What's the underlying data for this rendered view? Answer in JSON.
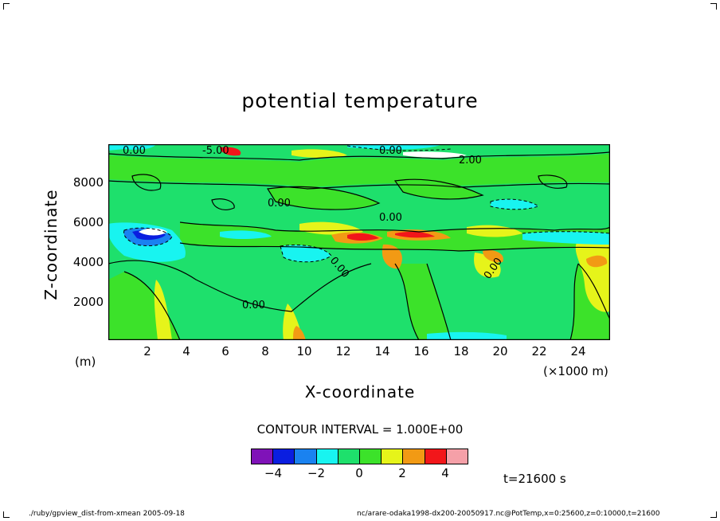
{
  "chart_data": {
    "type": "heatmap",
    "title": "potential temperature",
    "xlabel": "X-coordinate",
    "ylabel": "Z-coordinate",
    "x_unit": "(×1000 m)",
    "y_unit": "(m)",
    "xlim": [
      0,
      25.6
    ],
    "ylim": [
      0,
      9700
    ],
    "x_ticks": [
      "2",
      "4",
      "6",
      "8",
      "10",
      "12",
      "14",
      "16",
      "18",
      "20",
      "22",
      "24"
    ],
    "y_ticks": [
      "2000",
      "4000",
      "6000",
      "8000"
    ],
    "contour_interval_text": "CONTOUR INTERVAL = 1.000E+00",
    "contour_labels": [
      "0.00",
      "0.00",
      "0.00",
      "0.00",
      "0.00",
      "0.00",
      "0.00",
      "-5.00",
      "2.00"
    ],
    "colorbar": {
      "levels": [
        -5,
        -4,
        -3,
        -2,
        -1,
        0,
        1,
        2,
        3,
        4,
        5
      ],
      "tick_labels": [
        "−4",
        "−2",
        "0",
        "2",
        "4"
      ],
      "colors": [
        "#7f12b8",
        "#0a1ee0",
        "#1a82f0",
        "#18f4f0",
        "#1ee06c",
        "#3ce22a",
        "#e6f41a",
        "#f29a14",
        "#f2161a",
        "#f5a0a8"
      ]
    },
    "grid": false
  },
  "annotations": {
    "time": "t=21600 s",
    "footer_left": "./ruby/gpview_dist-from-xmean  2005-09-18",
    "footer_right": "nc/arare-odaka1998-dx200-20050917.nc@PotTemp,x=0:25600,z=0:10000,t=21600"
  }
}
